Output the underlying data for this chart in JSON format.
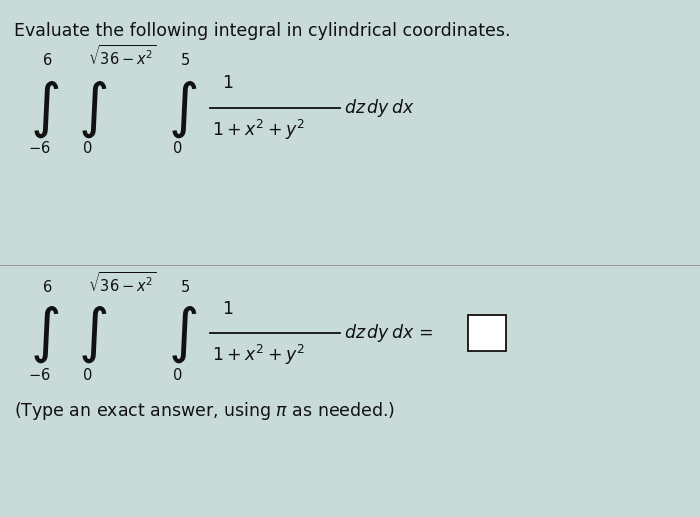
{
  "title": "Evaluate the following integral in cylindrical coordinates.",
  "bg_color": "#c8dbd8",
  "fig_width": 7.0,
  "fig_height": 5.17,
  "dpi": 100,
  "text_color": "#111111",
  "title_fontsize": 12.5,
  "math_fontsize": 12.5,
  "small_fontsize": 10.5,
  "note_fontsize": 12.5,
  "integral_fontsize": 30
}
